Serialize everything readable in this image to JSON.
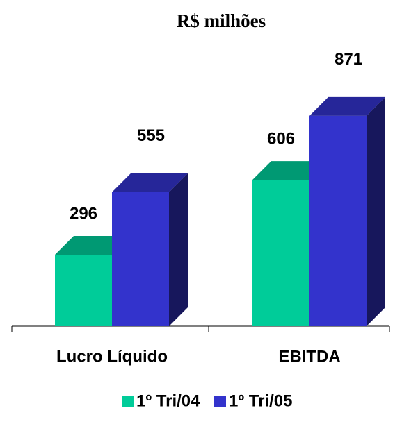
{
  "chart_data": {
    "type": "bar3d",
    "title": "R$ milhões",
    "categories": [
      "Lucro Líquido",
      "EBITDA"
    ],
    "series": [
      {
        "name": "1º Tri/04",
        "color": "#00cc99",
        "values": [
          296,
          606
        ]
      },
      {
        "name": "1º Tri/05",
        "color": "#3333cc",
        "values": [
          555,
          871
        ]
      }
    ]
  }
}
